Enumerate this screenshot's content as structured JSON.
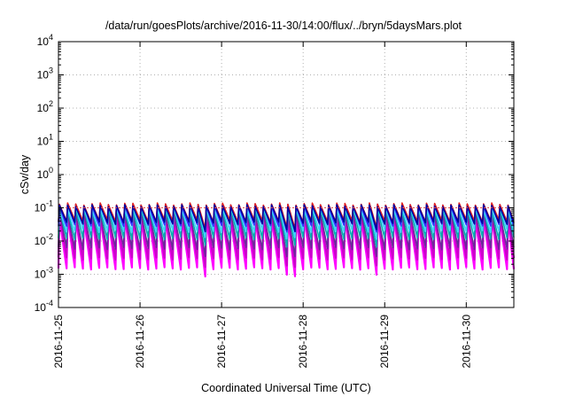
{
  "chart_data": {
    "type": "line",
    "title": "/data/run/goesPlots/archive/2016-11-30/14:00/flux/../bryn/5daysMars.plot",
    "xlabel": "Coordinated Universal Time (UTC)",
    "ylabel": "cSv/day",
    "y_scale": "log",
    "ylim": [
      0.0001,
      10000
    ],
    "xlim": [
      "2016-11-25T00:00",
      "2016-11-30T14:00"
    ],
    "x_ticks": [
      "2016-11-25",
      "2016-11-26",
      "2016-11-27",
      "2016-11-28",
      "2016-11-29",
      "2016-11-30"
    ],
    "y_ticks": [
      {
        "base": "10",
        "exp": "-4"
      },
      {
        "base": "10",
        "exp": "-3"
      },
      {
        "base": "10",
        "exp": "-2"
      },
      {
        "base": "10",
        "exp": "-1"
      },
      {
        "base": "10",
        "exp": "0"
      },
      {
        "base": "10",
        "exp": "1"
      },
      {
        "base": "10",
        "exp": "2"
      },
      {
        "base": "10",
        "exp": "3"
      },
      {
        "base": "10",
        "exp": "4"
      }
    ],
    "grid": true,
    "reference_line": {
      "y": 0.1,
      "color": "#e05050",
      "style": "dotted"
    },
    "waveform": {
      "cycles_per_day": 10,
      "peak_value": 0.12,
      "decay_fraction": 0.35,
      "gaps": [
        "2016-11-26T16:00",
        "2016-11-27T18:00",
        "2016-11-28T20:00"
      ]
    },
    "series": [
      {
        "color": "#ff00ff",
        "peak": 0.05,
        "trough": 0.0015
      },
      {
        "color": "#cc00cc",
        "peak": 0.06,
        "trough": 0.003
      },
      {
        "color": "#6a2a9a",
        "peak": 0.07,
        "trough": 0.006
      },
      {
        "color": "#00b0b0",
        "peak": 0.09,
        "trough": 0.012
      },
      {
        "color": "#40d0ff",
        "peak": 0.1,
        "trough": 0.02
      },
      {
        "color": "#3030ff",
        "peak": 0.12,
        "trough": 0.03
      },
      {
        "color": "#e02020",
        "peak": 0.13,
        "trough": 0.04
      },
      {
        "color": "#0000a0",
        "peak": 0.115,
        "trough": 0.035
      }
    ]
  }
}
